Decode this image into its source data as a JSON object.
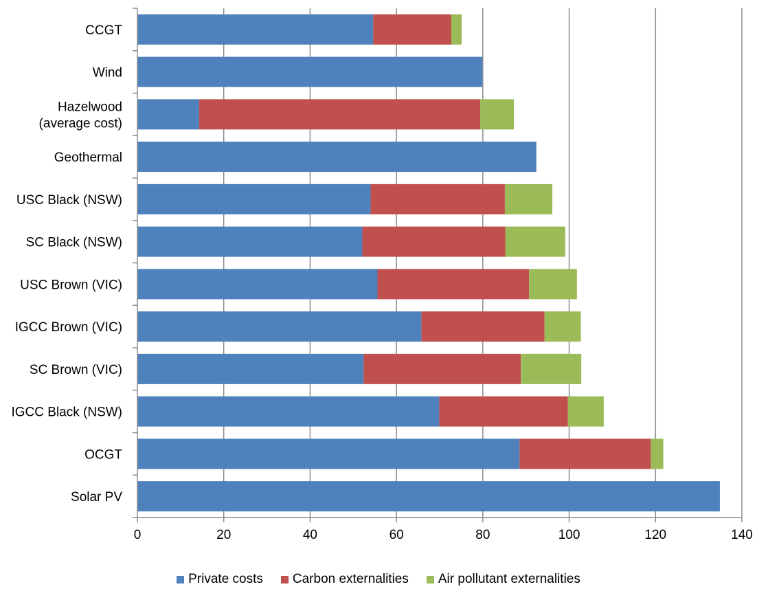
{
  "chart_data": {
    "type": "bar",
    "orientation": "horizontal",
    "stacked": true,
    "title": "",
    "xlabel": "",
    "ylabel": "",
    "xlim": [
      0,
      140
    ],
    "x_ticks": [
      0,
      20,
      40,
      60,
      80,
      100,
      120,
      140
    ],
    "grid": "vertical major gridlines",
    "legend_position": "bottom",
    "categories": [
      [
        "CCGT"
      ],
      [
        "Wind"
      ],
      [
        "Hazelwood",
        "(average cost)"
      ],
      [
        "Geothermal"
      ],
      [
        "USC Black (NSW)"
      ],
      [
        "SC Black (NSW)"
      ],
      [
        "USC Brown (VIC)"
      ],
      [
        "IGCC Brown (VIC)"
      ],
      [
        "SC Brown (VIC)"
      ],
      [
        "IGCC Black (NSW)"
      ],
      [
        "OCGT"
      ],
      [
        "Solar PV"
      ]
    ],
    "series": [
      {
        "name": "Private costs",
        "color": "#4F81BD",
        "values": [
          54.6,
          79.9,
          14.3,
          92.4,
          54.0,
          52.1,
          55.6,
          65.8,
          52.4,
          69.9,
          88.5,
          134.9
        ]
      },
      {
        "name": "Carbon externalities",
        "color": "#C0504D",
        "values": [
          18.1,
          0,
          65.1,
          0,
          31.1,
          33.1,
          35.1,
          28.5,
          36.4,
          29.8,
          30.4,
          0
        ]
      },
      {
        "name": "Air pollutant externalities",
        "color": "#9BBB59",
        "values": [
          2.4,
          0,
          7.8,
          0,
          11.0,
          13.9,
          11.1,
          8.4,
          14.0,
          8.3,
          2.9,
          0
        ]
      }
    ]
  }
}
